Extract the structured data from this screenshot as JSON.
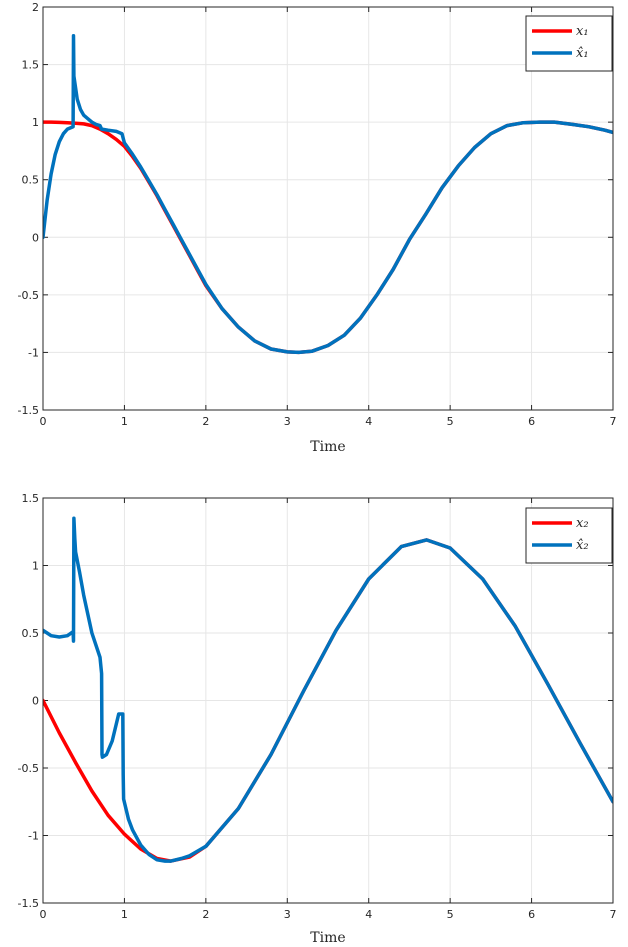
{
  "chart_data": [
    {
      "type": "line",
      "xlabel": "Time",
      "ylabel": "",
      "xlim": [
        0,
        7
      ],
      "ylim": [
        -1.5,
        2
      ],
      "xticks": [
        "0",
        "1",
        "2",
        "3",
        "4",
        "5",
        "6",
        "7"
      ],
      "yticks": [
        "-1.5",
        "-1",
        "-0.5",
        "0",
        "0.5",
        "1",
        "1.5",
        "2"
      ],
      "grid": true,
      "legend_position": "top-right",
      "series": [
        {
          "name": "x₁",
          "color": "#ff0000",
          "x": [
            0,
            0.1,
            0.2,
            0.3,
            0.4,
            0.5,
            0.6,
            0.7,
            0.8,
            0.9,
            1.0,
            1.1,
            1.2,
            1.3,
            1.4,
            1.5,
            1.6,
            1.7,
            1.8,
            1.9,
            2.0,
            2.2,
            2.4,
            2.6,
            2.8,
            3.0,
            3.14,
            3.3,
            3.5,
            3.7,
            3.9,
            4.1,
            4.3,
            4.5,
            4.7,
            4.9,
            5.1,
            5.3,
            5.5,
            5.7,
            5.9,
            6.1,
            6.28,
            6.5,
            6.7,
            6.9,
            7.0
          ],
          "y": [
            1.0,
            1.0,
            0.998,
            0.995,
            0.99,
            0.985,
            0.97,
            0.94,
            0.9,
            0.85,
            0.79,
            0.7,
            0.6,
            0.48,
            0.36,
            0.23,
            0.1,
            -0.03,
            -0.16,
            -0.29,
            -0.42,
            -0.62,
            -0.78,
            -0.9,
            -0.97,
            -0.995,
            -1.0,
            -0.99,
            -0.94,
            -0.85,
            -0.7,
            -0.5,
            -0.28,
            -0.02,
            0.2,
            0.43,
            0.62,
            0.78,
            0.9,
            0.97,
            0.995,
            1.0,
            1.0,
            0.98,
            0.96,
            0.93,
            0.91
          ]
        },
        {
          "name": "x̂₁",
          "color": "#0072bd",
          "x": [
            0,
            0.05,
            0.1,
            0.15,
            0.2,
            0.25,
            0.3,
            0.37,
            0.375,
            0.38,
            0.42,
            0.46,
            0.5,
            0.55,
            0.6,
            0.65,
            0.7,
            0.72,
            0.8,
            0.9,
            0.97,
            1.0,
            1.1,
            1.2,
            1.3,
            1.4,
            1.5,
            1.6,
            1.7,
            1.8,
            1.9,
            2.0,
            2.2,
            2.4,
            2.6,
            2.8,
            3.0,
            3.14,
            3.3,
            3.5,
            3.7,
            3.9,
            4.1,
            4.3,
            4.5,
            4.7,
            4.9,
            5.1,
            5.3,
            5.5,
            5.7,
            5.9,
            6.1,
            6.28,
            6.5,
            6.7,
            6.9,
            7.0
          ],
          "y": [
            0.0,
            0.32,
            0.55,
            0.72,
            0.83,
            0.9,
            0.94,
            0.96,
            1.75,
            1.4,
            1.2,
            1.11,
            1.06,
            1.03,
            1.0,
            0.98,
            0.97,
            0.94,
            0.93,
            0.92,
            0.9,
            0.82,
            0.72,
            0.61,
            0.49,
            0.37,
            0.24,
            0.11,
            -0.02,
            -0.15,
            -0.28,
            -0.41,
            -0.62,
            -0.78,
            -0.9,
            -0.97,
            -0.995,
            -1.0,
            -0.99,
            -0.94,
            -0.85,
            -0.7,
            -0.5,
            -0.28,
            -0.02,
            0.2,
            0.43,
            0.62,
            0.78,
            0.9,
            0.97,
            0.995,
            1.0,
            1.0,
            0.98,
            0.96,
            0.93,
            0.91
          ]
        }
      ]
    },
    {
      "type": "line",
      "xlabel": "Time",
      "ylabel": "",
      "xlim": [
        0,
        7
      ],
      "ylim": [
        -1.5,
        1.5
      ],
      "xticks": [
        "0",
        "1",
        "2",
        "3",
        "4",
        "5",
        "6",
        "7"
      ],
      "yticks": [
        "-1.5",
        "-1",
        "-0.5",
        "0",
        "0.5",
        "1",
        "1.5"
      ],
      "grid": true,
      "legend_position": "top-right",
      "series": [
        {
          "name": "x₂",
          "color": "#ff0000",
          "x": [
            0,
            0.2,
            0.4,
            0.6,
            0.8,
            1.0,
            1.2,
            1.4,
            1.57,
            1.8,
            2.0,
            2.4,
            2.8,
            3.2,
            3.6,
            4.0,
            4.4,
            4.71,
            5.0,
            5.4,
            5.8,
            6.2,
            6.6,
            7.0
          ],
          "y": [
            0.0,
            -0.24,
            -0.46,
            -0.67,
            -0.85,
            -0.99,
            -1.1,
            -1.17,
            -1.19,
            -1.16,
            -1.08,
            -0.8,
            -0.4,
            0.07,
            0.52,
            0.9,
            1.14,
            1.19,
            1.13,
            0.9,
            0.55,
            0.12,
            -0.32,
            -0.75
          ]
        },
        {
          "name": "x̂₂",
          "color": "#0072bd",
          "x": [
            0,
            0.05,
            0.1,
            0.2,
            0.3,
            0.37,
            0.375,
            0.38,
            0.39,
            0.4,
            0.45,
            0.5,
            0.6,
            0.7,
            0.72,
            0.725,
            0.73,
            0.78,
            0.85,
            0.93,
            0.98,
            0.985,
            0.99,
            1.05,
            1.1,
            1.2,
            1.3,
            1.4,
            1.5,
            1.57,
            1.7,
            1.8,
            2.0,
            2.4,
            2.8,
            3.2,
            3.6,
            4.0,
            4.4,
            4.71,
            5.0,
            5.4,
            5.8,
            6.2,
            6.6,
            7.0
          ],
          "y": [
            0.52,
            0.5,
            0.48,
            0.47,
            0.48,
            0.51,
            0.44,
            1.35,
            1.2,
            1.1,
            0.95,
            0.78,
            0.5,
            0.32,
            0.2,
            -0.4,
            -0.42,
            -0.4,
            -0.3,
            -0.1,
            -0.1,
            -0.55,
            -0.73,
            -0.88,
            -0.96,
            -1.07,
            -1.14,
            -1.18,
            -1.19,
            -1.19,
            -1.17,
            -1.15,
            -1.08,
            -0.8,
            -0.4,
            0.07,
            0.52,
            0.9,
            1.14,
            1.19,
            1.13,
            0.9,
            0.55,
            0.12,
            -0.32,
            -0.75
          ]
        }
      ]
    }
  ]
}
